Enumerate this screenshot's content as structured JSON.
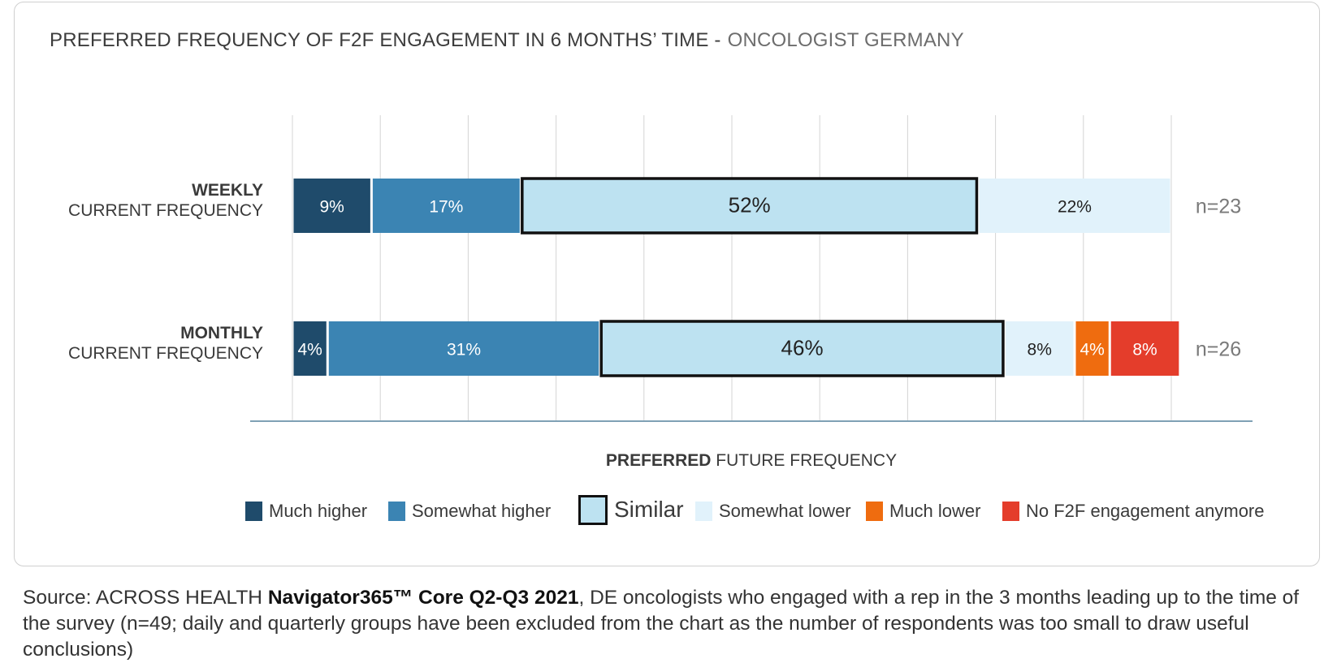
{
  "title": {
    "main": "PREFERRED FREQUENCY OF F2F ENGAGEMENT IN 6 MONTHS’ TIME -",
    "sub": "ONCOLOGIST GERMANY"
  },
  "colors": {
    "much_higher": "#1f4b6b",
    "somewhat_higher": "#3b84b3",
    "similar": "#bde2f1",
    "somewhat_lower": "#e1f2fb",
    "much_lower": "#ef6c0f",
    "no_f2f": "#e43d2b",
    "grid": "#d4d4d4",
    "axis": "#7fa1b5"
  },
  "chart_data": {
    "type": "bar",
    "orientation": "horizontal-stacked-100",
    "xlim": [
      0,
      100
    ],
    "xlabel": {
      "bold": "PREFERRED",
      "rest": " FUTURE FREQUENCY"
    },
    "categories": [
      {
        "bold": "WEEKLY",
        "rest": "CURRENT FREQUENCY",
        "n": "n=23"
      },
      {
        "bold": "MONTHLY",
        "rest": "CURRENT FREQUENCY",
        "n": "n=26"
      }
    ],
    "series": [
      {
        "name": "Much higher",
        "key": "much_higher",
        "values": [
          9,
          4
        ],
        "labels": [
          "9%",
          "4%"
        ]
      },
      {
        "name": "Somewhat higher",
        "key": "somewhat_higher",
        "values": [
          17,
          31
        ],
        "labels": [
          "17%",
          "31%"
        ]
      },
      {
        "name": "Similar",
        "key": "similar",
        "values": [
          52,
          46
        ],
        "labels": [
          "52%",
          "46%"
        ],
        "highlight": true
      },
      {
        "name": "Somewhat lower",
        "key": "somewhat_lower",
        "values": [
          22,
          8
        ],
        "labels": [
          "22%",
          "8%"
        ]
      },
      {
        "name": "Much lower",
        "key": "much_lower",
        "values": [
          0,
          4
        ],
        "labels": [
          "",
          "4%"
        ]
      },
      {
        "name": "No F2F engagement anymore",
        "key": "no_f2f",
        "values": [
          0,
          8
        ],
        "labels": [
          "",
          "8%"
        ]
      }
    ],
    "grid": true,
    "legend_position": "bottom"
  },
  "source": {
    "prefix": "Source: ACROSS HEALTH ",
    "bold": "Navigator365™ Core Q2-Q3 2021",
    "rest": ", DE oncologists who engaged with a rep in the 3 months leading up to the time of the survey (n=49; daily and quarterly groups have been excluded from the chart as the number of respondents was too small to draw useful conclusions)"
  }
}
